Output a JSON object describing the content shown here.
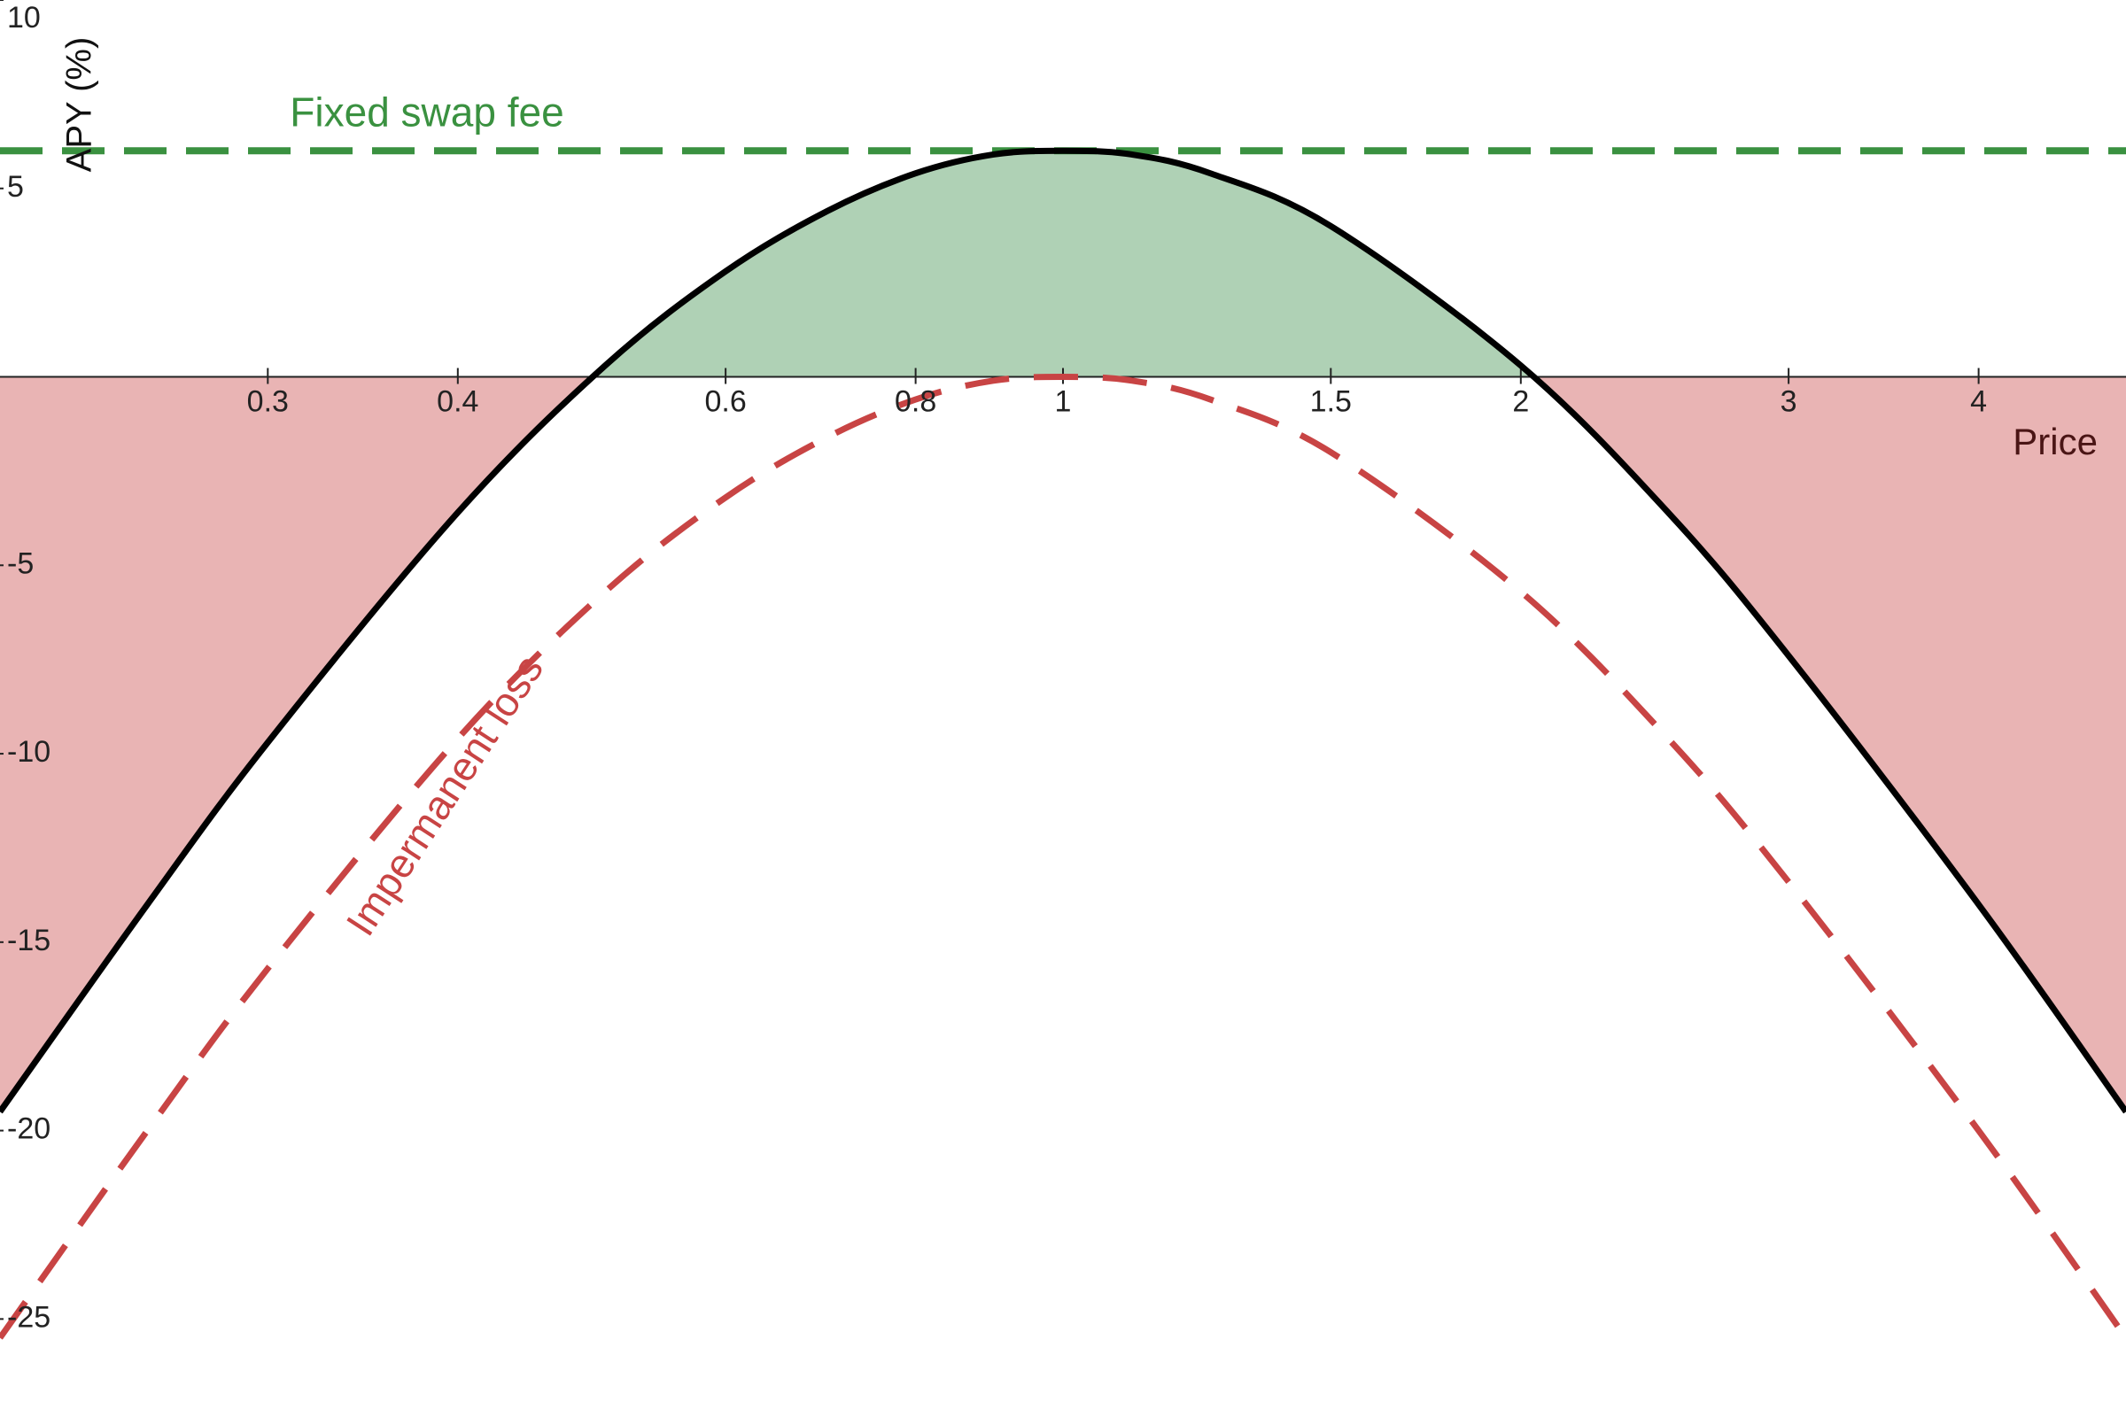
{
  "chart_data": {
    "type": "line",
    "x_label": "Price",
    "y_label": "APY (%)",
    "x_log": true,
    "xlim": [
      0.2,
      5
    ],
    "ylim": [
      -27.6,
      10
    ],
    "xticks": [
      0.3,
      0.4,
      0.6,
      0.8,
      1,
      1.5,
      2,
      3,
      4
    ],
    "yticks": [
      10,
      5,
      -5,
      -10,
      -15,
      -20,
      -25
    ],
    "x": [
      0.2,
      0.25,
      0.3,
      0.4,
      0.5,
      0.6,
      0.7,
      0.8,
      0.9,
      1,
      1.11,
      1.25,
      1.5,
      2,
      2.5,
      3,
      4,
      5
    ],
    "fee": {
      "name": "Fixed swap fee",
      "value": 6,
      "color": "#3a9140"
    },
    "series": [
      {
        "name": "Impermanent loss",
        "color": "#c84444",
        "values": [
          -25.5,
          -20,
          -15.7,
          -9.6,
          -5.7,
          -3.2,
          -1.6,
          -0.6,
          -0.1,
          0,
          -0.1,
          -0.6,
          -2.0,
          -5.7,
          -9.6,
          -13.4,
          -20,
          -25.5
        ]
      },
      {
        "color": "#000000",
        "values": [
          -19.5,
          -14,
          -9.7,
          -3.6,
          0.3,
          2.8,
          4.4,
          5.4,
          5.9,
          6,
          5.9,
          5.4,
          4.0,
          0.3,
          -3.6,
          -7.4,
          -14,
          -19.5
        ]
      }
    ],
    "gain_color": "#afd1b5",
    "loss_color": "#e9b4b4"
  }
}
